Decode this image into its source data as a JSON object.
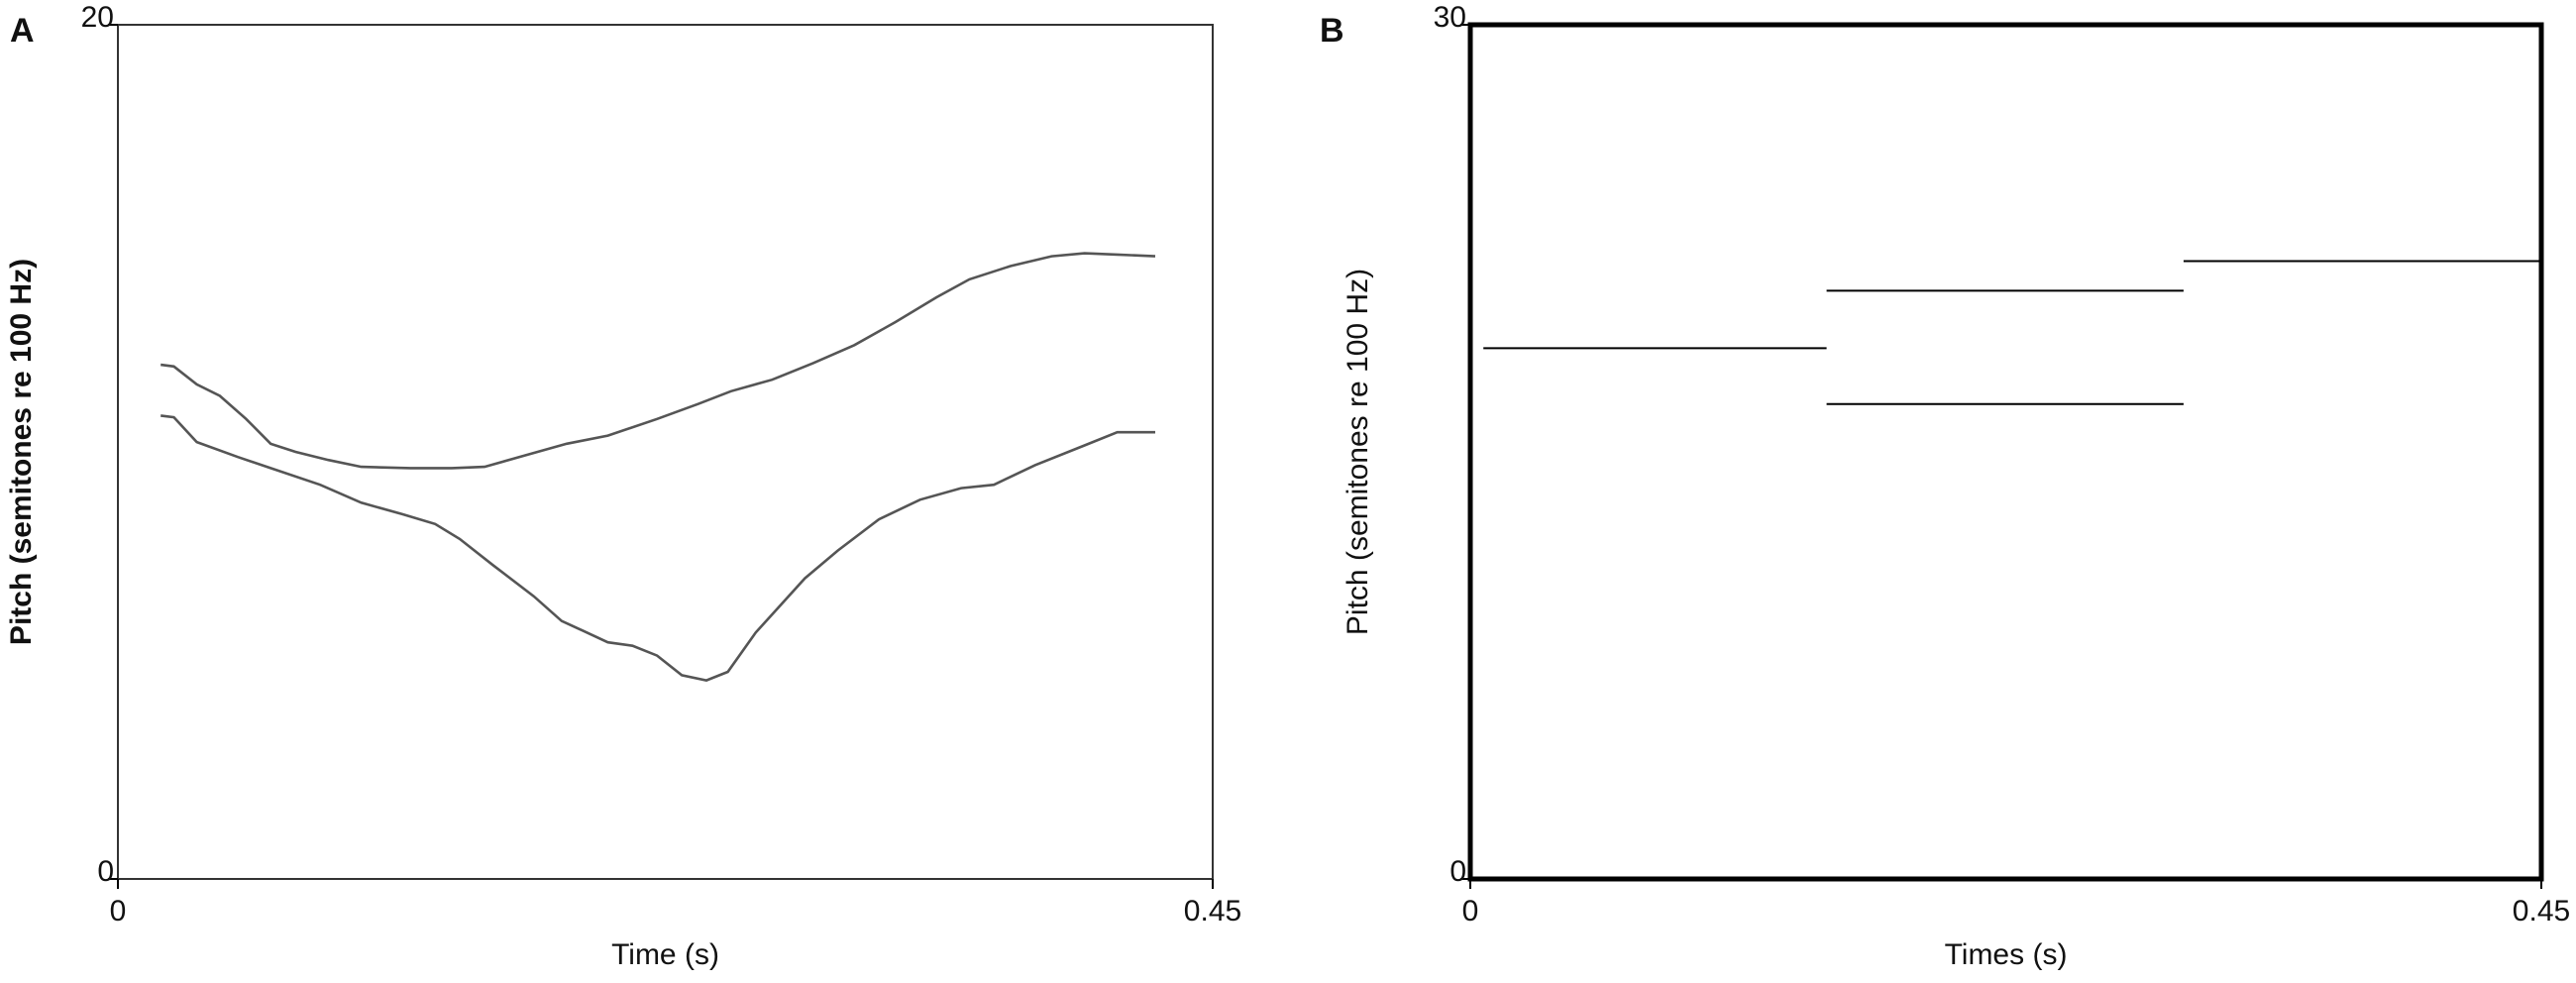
{
  "chart_data": [
    {
      "type": "line",
      "panel_label": "A",
      "x_label": "Time (s)",
      "y_label": "Pitch (semitones re 100 Hz)",
      "xlim": [
        0,
        0.45
      ],
      "ylim": [
        0,
        20
      ],
      "xticks": [
        0,
        0.45
      ],
      "yticks": [
        0,
        20
      ],
      "series": [
        {
          "color": "#555555",
          "x": [
            0.0176,
            0.023,
            0.0324,
            0.0419,
            0.0527,
            0.0628,
            0.073,
            0.0865,
            0.1,
            0.1203,
            0.1372,
            0.1507,
            0.1676,
            0.1845,
            0.2014,
            0.2216,
            0.2385,
            0.252,
            0.2689,
            0.2858,
            0.3027,
            0.3196,
            0.3365,
            0.35,
            0.3669,
            0.3838,
            0.3973,
            0.4108,
            0.4264
          ],
          "values": [
            12.04,
            12.0,
            11.58,
            11.31,
            10.77,
            10.19,
            10.0,
            9.81,
            9.65,
            9.62,
            9.62,
            9.65,
            9.92,
            10.19,
            10.38,
            10.77,
            11.12,
            11.42,
            11.69,
            12.08,
            12.5,
            13.04,
            13.62,
            14.04,
            14.35,
            14.58,
            14.65,
            14.62,
            14.58
          ]
        },
        {
          "color": "#555555",
          "x": [
            0.0176,
            0.023,
            0.0324,
            0.0493,
            0.0628,
            0.0831,
            0.1,
            0.1169,
            0.1304,
            0.1405,
            0.1541,
            0.1709,
            0.1824,
            0.1912,
            0.2014,
            0.2115,
            0.2216,
            0.2318,
            0.2419,
            0.2507,
            0.2622,
            0.2824,
            0.2959,
            0.3128,
            0.3297,
            0.3466,
            0.3601,
            0.377,
            0.3973,
            0.4108,
            0.4264
          ],
          "values": [
            10.85,
            10.81,
            10.23,
            9.88,
            9.62,
            9.23,
            8.81,
            8.54,
            8.31,
            7.96,
            7.35,
            6.62,
            6.04,
            5.81,
            5.54,
            5.46,
            5.23,
            4.77,
            4.65,
            4.85,
            5.77,
            7.04,
            7.69,
            8.42,
            8.88,
            9.15,
            9.23,
            9.69,
            10.15,
            10.46,
            10.46
          ]
        }
      ]
    },
    {
      "type": "line",
      "panel_label": "B",
      "x_label": "Times (s)",
      "y_label": "Pitch (semitones re 100 Hz)",
      "xlim": [
        0,
        0.45
      ],
      "ylim": [
        0,
        30
      ],
      "xticks": [
        0,
        0.45
      ],
      "yticks": [
        0,
        30
      ],
      "series": [
        {
          "color": "#000000",
          "x": [
            0.0055,
            0.1497
          ],
          "values": [
            18.64,
            18.64
          ]
        },
        {
          "color": "#000000",
          "x": [
            0.1497,
            0.2997
          ],
          "values": [
            20.66,
            20.66
          ]
        },
        {
          "color": "#000000",
          "x": [
            0.1497,
            0.2997
          ],
          "values": [
            16.68,
            16.68
          ]
        },
        {
          "color": "#000000",
          "x": [
            0.2997,
            0.45
          ],
          "values": [
            21.7,
            21.7
          ]
        }
      ]
    }
  ]
}
